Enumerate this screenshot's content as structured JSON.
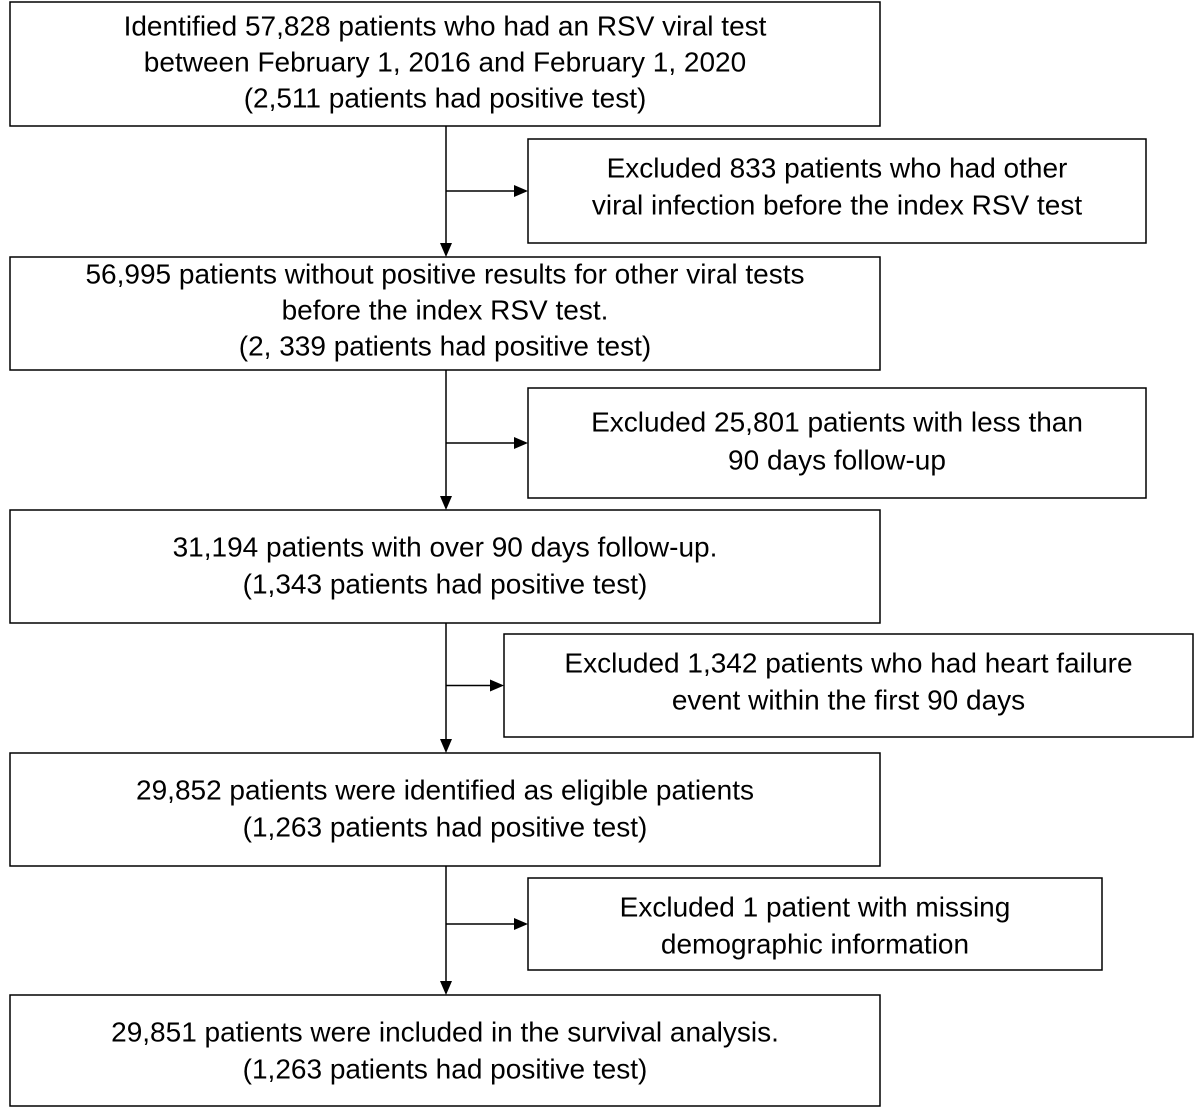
{
  "nodes": [
    {
      "lines": [
        "Identified 57,828 patients who had an RSV viral test",
        "between February 1, 2016 and February 1, 2020",
        "(2,511 patients had positive test)"
      ]
    },
    {
      "lines": [
        "56,995 patients without positive results for other viral tests",
        "before the index RSV test.",
        "(2, 339 patients had positive test)"
      ]
    },
    {
      "lines": [
        "31,194 patients with over 90 days follow-up.",
        "(1,343 patients had positive test)"
      ]
    },
    {
      "lines": [
        "29,852 patients were identified as eligible patients",
        "(1,263 patients had positive test)"
      ]
    },
    {
      "lines": [
        "29,851 patients were included in the survival analysis.",
        "(1,263 patients had positive test)"
      ]
    }
  ],
  "exclusions": [
    {
      "lines": [
        "Excluded 833 patients who had other",
        "viral infection before the index RSV test"
      ]
    },
    {
      "lines": [
        "Excluded 25,801 patients with less than",
        "90 days follow-up"
      ]
    },
    {
      "lines": [
        "Excluded 1,342 patients who had heart failure",
        "event within the first 90 days"
      ]
    },
    {
      "lines": [
        "Excluded 1 patient with missing",
        "demographic information"
      ]
    }
  ]
}
